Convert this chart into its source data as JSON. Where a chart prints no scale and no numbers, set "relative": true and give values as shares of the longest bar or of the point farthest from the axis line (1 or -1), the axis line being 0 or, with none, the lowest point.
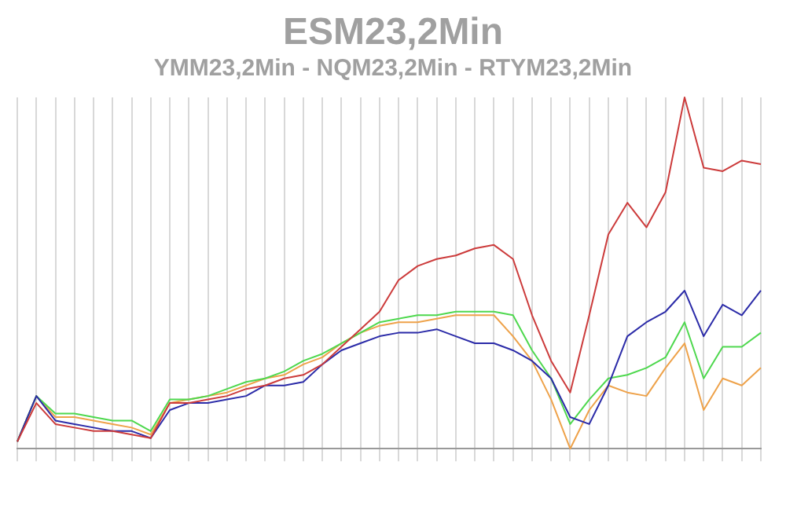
{
  "chart_data": {
    "type": "line",
    "title": "ESM23,2Min",
    "subtitle": "YMM23,2Min - NQM23,2Min - RTYM23,2Min",
    "relative": true,
    "grid": "x",
    "legend": false,
    "marker": "none",
    "line_style": "solid",
    "categories": [
      null,
      null,
      null,
      null,
      null,
      null,
      null,
      null,
      null,
      null,
      null,
      null,
      null,
      null,
      null,
      null,
      null,
      null,
      null,
      null,
      null,
      null,
      null,
      null,
      null,
      null,
      null,
      null,
      null,
      null,
      null,
      null,
      null,
      null,
      null,
      null,
      null,
      null,
      null,
      null
    ],
    "series": [
      {
        "color": "#cc3b3b",
        "values": [
          0.02,
          0.13,
          0.07,
          0.06,
          0.05,
          0.05,
          0.04,
          0.03,
          0.13,
          0.13,
          0.14,
          0.15,
          0.17,
          0.18,
          0.2,
          0.21,
          0.24,
          0.29,
          0.34,
          0.39,
          0.48,
          0.52,
          0.54,
          0.55,
          0.57,
          0.58,
          0.54,
          0.38,
          0.25,
          0.16,
          0.38,
          0.61,
          0.7,
          0.63,
          0.73,
          1,
          0.8,
          0.79,
          0.82,
          0.81
        ]
      },
      {
        "color": "#2b2ba8",
        "values": [
          0.02,
          0.15,
          0.08,
          0.07,
          0.06,
          0.05,
          0.05,
          0.03,
          0.11,
          0.13,
          0.13,
          0.14,
          0.15,
          0.18,
          0.18,
          0.19,
          0.24,
          0.28,
          0.3,
          0.32,
          0.33,
          0.33,
          0.34,
          0.32,
          0.3,
          0.3,
          0.28,
          0.25,
          0.2,
          0.09,
          0.07,
          0.18,
          0.32,
          0.36,
          0.39,
          0.45,
          0.32,
          0.41,
          0.38,
          0.45
        ]
      },
      {
        "color": "#4ed84e",
        "values": [
          0.02,
          0.15,
          0.1,
          0.1,
          0.09,
          0.08,
          0.08,
          0.05,
          0.14,
          0.14,
          0.15,
          0.17,
          0.19,
          0.2,
          0.22,
          0.25,
          0.27,
          0.3,
          0.33,
          0.36,
          0.37,
          0.38,
          0.38,
          0.39,
          0.39,
          0.39,
          0.38,
          0.28,
          0.2,
          0.07,
          0.14,
          0.2,
          0.21,
          0.23,
          0.26,
          0.36,
          0.2,
          0.29,
          0.29,
          0.33
        ]
      },
      {
        "color": "#eea24a",
        "values": [
          0.02,
          0.15,
          0.09,
          0.09,
          0.08,
          0.07,
          0.06,
          0.04,
          0.13,
          0.14,
          0.15,
          0.16,
          0.18,
          0.2,
          0.21,
          0.24,
          0.26,
          0.3,
          0.33,
          0.35,
          0.36,
          0.36,
          0.37,
          0.38,
          0.38,
          0.38,
          0.32,
          0.25,
          0.14,
          0,
          0.11,
          0.18,
          0.16,
          0.15,
          0.23,
          0.3,
          0.11,
          0.2,
          0.18,
          0.23
        ]
      }
    ]
  }
}
